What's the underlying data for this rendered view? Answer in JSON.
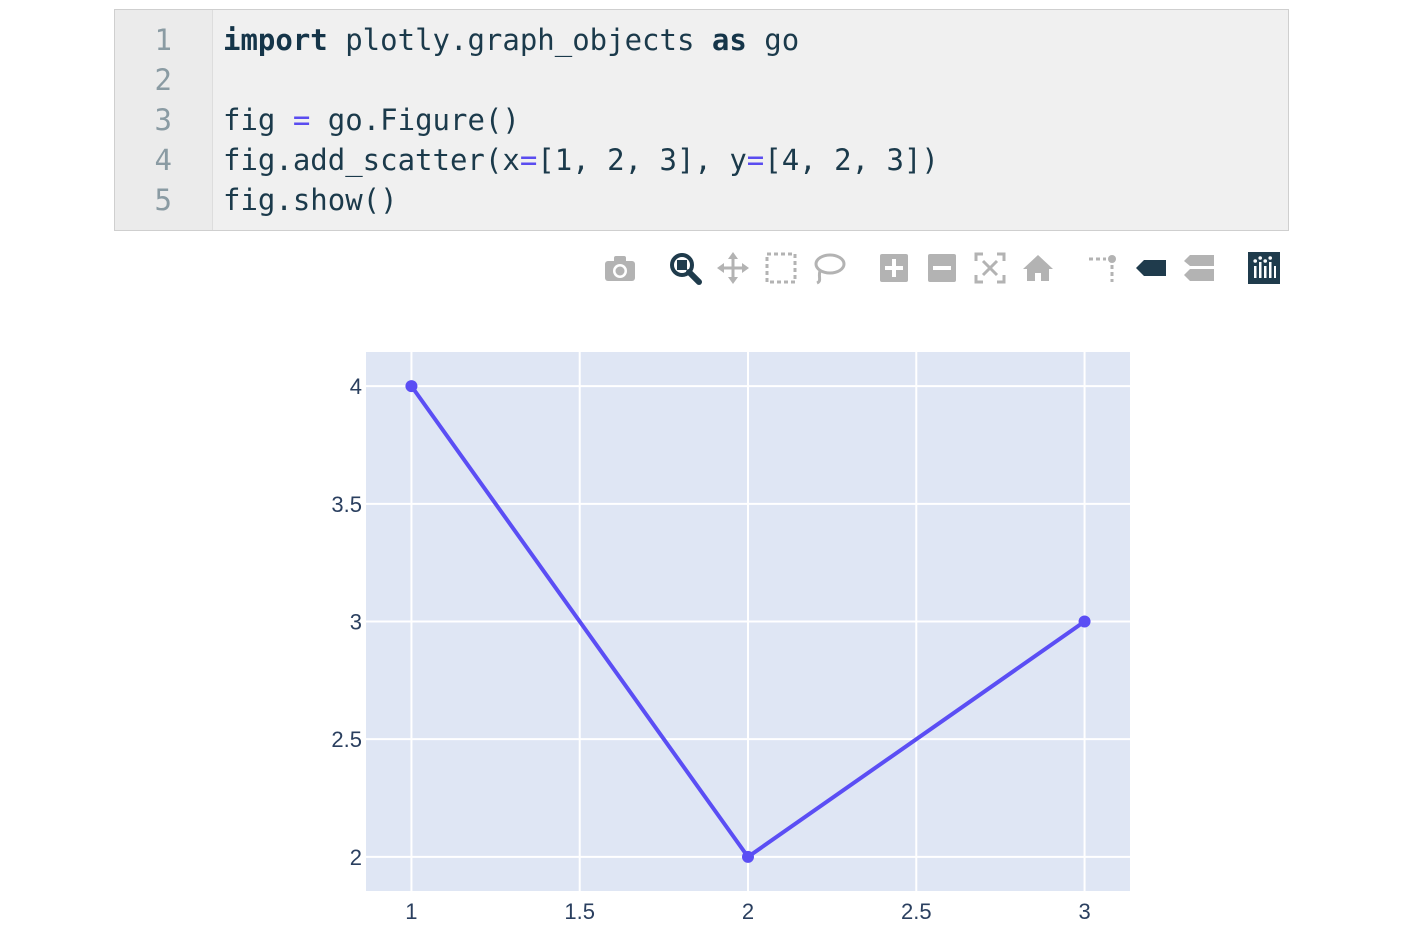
{
  "code": {
    "line_numbers": [
      "1",
      "2",
      "3",
      "4",
      "5"
    ],
    "lines": [
      [
        {
          "t": "import",
          "c": "kw"
        },
        {
          "t": " plotly.graph_objects ",
          "c": ""
        },
        {
          "t": "as",
          "c": "kw"
        },
        {
          "t": " go",
          "c": ""
        }
      ],
      [],
      [
        {
          "t": "fig ",
          "c": ""
        },
        {
          "t": "=",
          "c": "op"
        },
        {
          "t": " go.Figure()",
          "c": ""
        }
      ],
      [
        {
          "t": "fig.add_scatter(x",
          "c": ""
        },
        {
          "t": "=",
          "c": "op"
        },
        {
          "t": "[1, 2, 3], y",
          "c": ""
        },
        {
          "t": "=",
          "c": "op"
        },
        {
          "t": "[4, 2, 3])",
          "c": ""
        }
      ],
      [
        {
          "t": "fig.show()",
          "c": ""
        }
      ]
    ]
  },
  "modebar": {
    "buttons": [
      {
        "name": "camera-icon",
        "active": false
      },
      {
        "name": "zoom-icon",
        "active": true
      },
      {
        "name": "pan-icon",
        "active": false
      },
      {
        "name": "box-select-icon",
        "active": false
      },
      {
        "name": "lasso-select-icon",
        "active": false
      },
      {
        "name": "zoom-in-icon",
        "active": false
      },
      {
        "name": "zoom-out-icon",
        "active": false
      },
      {
        "name": "autoscale-icon",
        "active": false
      },
      {
        "name": "reset-axes-icon",
        "active": false
      },
      {
        "name": "spike-lines-icon",
        "active": false
      },
      {
        "name": "hover-closest-icon",
        "active": false
      },
      {
        "name": "hover-compare-icon",
        "active": false
      },
      {
        "name": "plotly-logo-icon",
        "active": false
      }
    ]
  },
  "chart_data": {
    "type": "line",
    "mode": "lines+markers",
    "x": [
      1,
      2,
      3
    ],
    "y": [
      4,
      2,
      3
    ],
    "xlim": [
      0.865,
      3.135
    ],
    "ylim": [
      1.855,
      4.145
    ],
    "x_ticks": [
      1,
      1.5,
      2,
      2.5,
      3
    ],
    "x_tick_labels": [
      "1",
      "1.5",
      "2",
      "2.5",
      "3"
    ],
    "y_ticks": [
      2,
      2.5,
      3,
      3.5,
      4
    ],
    "y_tick_labels": [
      "2",
      "2.5",
      "3",
      "3.5",
      "4"
    ],
    "grid": true,
    "title": "",
    "xlabel": "",
    "ylabel": "",
    "colors": {
      "plot_bg": "#dfe6f4",
      "grid": "#ffffff",
      "line": "#5b4ef4",
      "tick_text": "#2a3f5f"
    }
  }
}
